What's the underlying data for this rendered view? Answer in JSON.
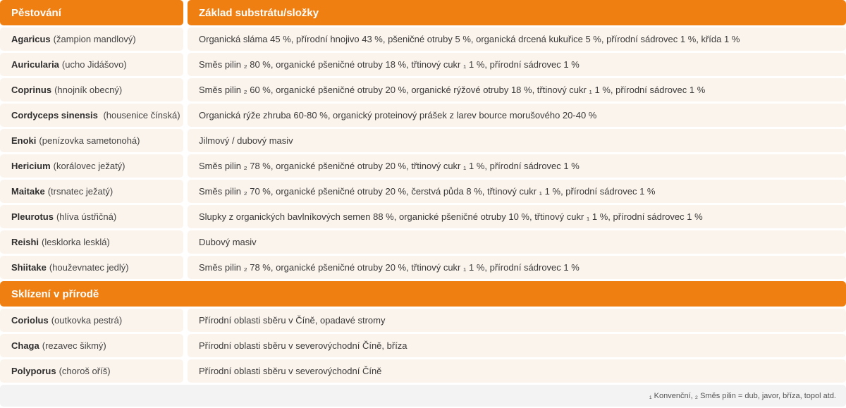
{
  "header": {
    "col1": "Pěstování",
    "col2": "Základ substrátu/složky"
  },
  "cultivation_rows": [
    {
      "name": "Agaricus",
      "common": "(žampion mandlový)",
      "substrate": "Organická sláma 45 %, přírodní hnojivo 43 %, pšeničné otruby 5 %, organická drcená kukuřice 5 %, přírodní sádrovec 1 %, křída 1 %"
    },
    {
      "name": "Auricularia",
      "common": "(ucho Jidášovo)",
      "substrate": "Směs pilin ₂ 80 %, organické pšeničné otruby 18 %, třtinový cukr ₁ 1 %, přírodní sádrovec 1 %"
    },
    {
      "name": "Coprinus",
      "common": "(hnojník obecný)",
      "substrate": "Směs pilin ₂ 60 %, organické pšeničné otruby 20 %, organické rýžové otruby 18 %, třtinový cukr ₁ 1 %, přírodní sádrovec 1 %"
    },
    {
      "name": "Cordyceps sinensis",
      "common": " (housenice čínská)",
      "substrate": "Organická rýže zhruba 60-80 %, organický proteinový prášek z larev bource morušového 20-40 %"
    },
    {
      "name": "Enoki",
      "common": "(penízovka sametonohá)",
      "substrate": "Jilmový / dubový masiv"
    },
    {
      "name": "Hericium",
      "common": "(korálovec ježatý)",
      "substrate": "Směs pilin ₂ 78 %, organické pšeničné otruby 20 %, třtinový cukr ₁ 1 %, přírodní sádrovec 1 %"
    },
    {
      "name": "Maitake",
      "common": "(trsnatec ježatý)",
      "substrate": "Směs pilin ₂ 70 %, organické pšeničné otruby 20 %, čerstvá půda 8 %, třtinový cukr ₁ 1 %, přírodní sádrovec 1 %"
    },
    {
      "name": "Pleurotus",
      "common": "(hlíva ústřičná)",
      "substrate": "Slupky z organických bavlníkových semen 88 %, organické pšeničné otruby 10 %, třtinový cukr ₁ 1 %, přírodní sádrovec 1 %"
    },
    {
      "name": "Reishi",
      "common": "(lesklorka lesklá)",
      "substrate": "Dubový masiv"
    },
    {
      "name": "Shiitake",
      "common": "(houževnatec jedlý)",
      "substrate": "Směs pilin ₂ 78 %, organické pšeničné otruby 20 %, třtinový cukr ₁ 1 %, přírodní sádrovec 1 %"
    }
  ],
  "wild_section_title": "Sklízení v přírodě",
  "wild_rows": [
    {
      "name": "Coriolus",
      "common": "(outkovka pestrá)",
      "substrate": "Přírodní oblasti sběru v Číně, opadavé stromy"
    },
    {
      "name": "Chaga",
      "common": "(rezavec šikmý)",
      "substrate": "Přírodní oblasti sběru v severovýchodní Číně, bříza"
    },
    {
      "name": "Polyporus",
      "common": "(choroš oříš)",
      "substrate": "Přírodní oblasti sběru v severovýchodní Číně"
    }
  ],
  "footnote": "₁ Konvenční, ₂ Směs pilin = dub, javor, bříza, topol atd.",
  "colors": {
    "accent": "#f07f12",
    "row_bg": "#fbf4ec",
    "footnote_bg": "#f3f3f3"
  }
}
